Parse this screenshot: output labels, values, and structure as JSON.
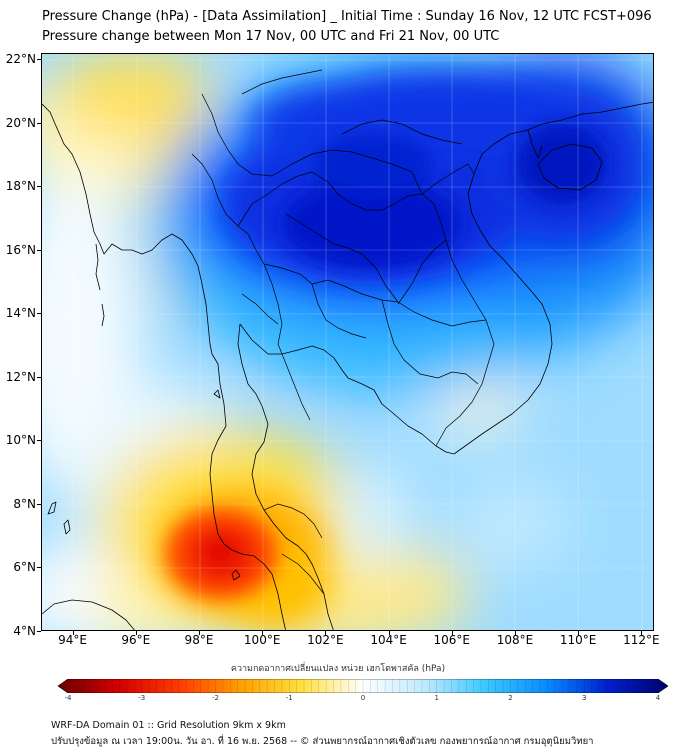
{
  "title": {
    "line1": "Pressure Change (hPa) - [Data Assimilation] _ Initial Time : Sunday 16 Nov, 12 UTC FCST+096",
    "line2": "Pressure change between Mon 17 Nov, 00 UTC and Fri 21 Nov, 00 UTC"
  },
  "axes": {
    "lat_labels": [
      {
        "value": 22,
        "label": "22°N"
      },
      {
        "value": 20,
        "label": "20°N"
      },
      {
        "value": 18,
        "label": "18°N"
      },
      {
        "value": 16,
        "label": "16°N"
      },
      {
        "value": 14,
        "label": "14°N"
      },
      {
        "value": 12,
        "label": "12°N"
      },
      {
        "value": 10,
        "label": "10°N"
      },
      {
        "value": 8,
        "label": "8°N"
      },
      {
        "value": 6,
        "label": "6°N"
      },
      {
        "value": 4,
        "label": "4°N"
      }
    ],
    "lon_labels": [
      {
        "value": 94,
        "label": "94°E"
      },
      {
        "value": 96,
        "label": "96°E"
      },
      {
        "value": 98,
        "label": "98°E"
      },
      {
        "value": 100,
        "label": "100°E"
      },
      {
        "value": 102,
        "label": "102°E"
      },
      {
        "value": 104,
        "label": "104°E"
      },
      {
        "value": 106,
        "label": "106°E"
      },
      {
        "value": 108,
        "label": "108°E"
      },
      {
        "value": 110,
        "label": "110°E"
      },
      {
        "value": 112,
        "label": "112°E"
      }
    ],
    "lat_range": [
      4,
      22.2
    ],
    "lon_range": [
      93,
      112.4
    ]
  },
  "colorbar": {
    "label": "ความกดอากาศเปลี่ยนแปลง หน่วย เฮกโตพาสคัล (hPa)",
    "ticks": [
      "-4",
      "-3",
      "-2",
      "-1",
      "0",
      "1",
      "2",
      "3",
      "4"
    ],
    "range": [
      -4,
      4
    ],
    "colors": [
      "#6b0000",
      "#d40000",
      "#ff3c00",
      "#ffa000",
      "#ffe040",
      "#ffffff",
      "#bfeaff",
      "#3cc8ff",
      "#0a8cff",
      "#0020d0",
      "#00006b"
    ]
  },
  "footer": {
    "line1": "WRF-DA Domain 01 :: Grid Resolution 9km x 9km",
    "line2": "ปรับปรุงข้อมูล ณ เวลา 19:00น. วัน อา. ที่ 16 พ.ย. 2568 -- © ส่วนพยากรณ์อากาศเชิงตัวเลข กองพยากรณ์อากาศ กรมอุตุนิยมวิทยา"
  },
  "field": {
    "anomalies": [
      {
        "kind": "rise",
        "center_lon": 103.5,
        "center_lat": 18.0,
        "peak_hpa": 4.0
      },
      {
        "kind": "rise",
        "center_lon": 110.5,
        "center_lat": 19.5,
        "peak_hpa": 4.0
      },
      {
        "kind": "fall",
        "center_lon": 98.5,
        "center_lat": 6.4,
        "peak_hpa": -3.0
      },
      {
        "kind": "fall",
        "center_lon": 94.5,
        "center_lat": 21.5,
        "peak_hpa": -1.5
      }
    ]
  }
}
